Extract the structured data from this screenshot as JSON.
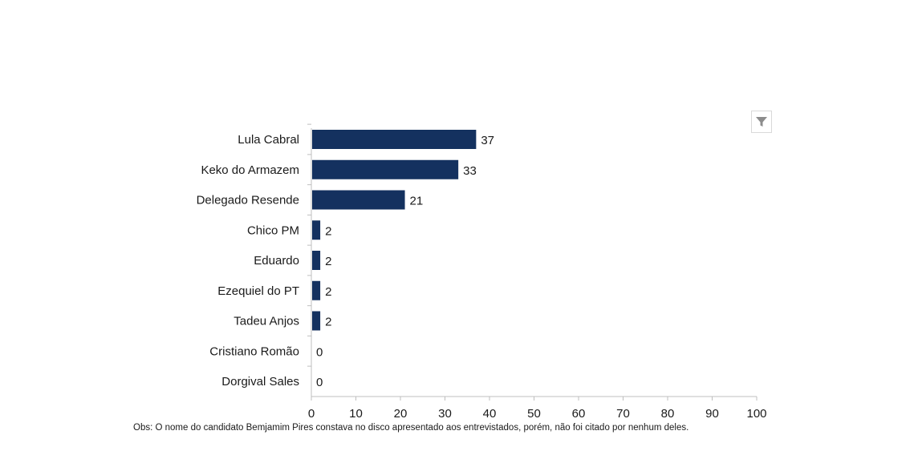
{
  "chart_data": {
    "type": "bar",
    "orientation": "horizontal",
    "categories": [
      "Lula Cabral",
      "Keko do Armazem",
      "Delegado Resende",
      "Chico PM",
      "Eduardo",
      "Ezequiel do PT",
      "Tadeu Anjos",
      "Cristiano Romão",
      "Dorgival Sales"
    ],
    "values": [
      37,
      33,
      21,
      2,
      2,
      2,
      2,
      0,
      0
    ],
    "xlim": [
      0,
      100
    ],
    "xticks": [
      0,
      10,
      20,
      30,
      40,
      50,
      60,
      70,
      80,
      90,
      100
    ],
    "grid": false,
    "data_labels": true,
    "bar_color": "#14315F"
  },
  "footnote": "Obs: O nome do candidato Bemjamim Pires constava no disco apresentado aos entrevistados, porém, não foi citado por nenhum deles.",
  "filter_icon": "filter-icon"
}
